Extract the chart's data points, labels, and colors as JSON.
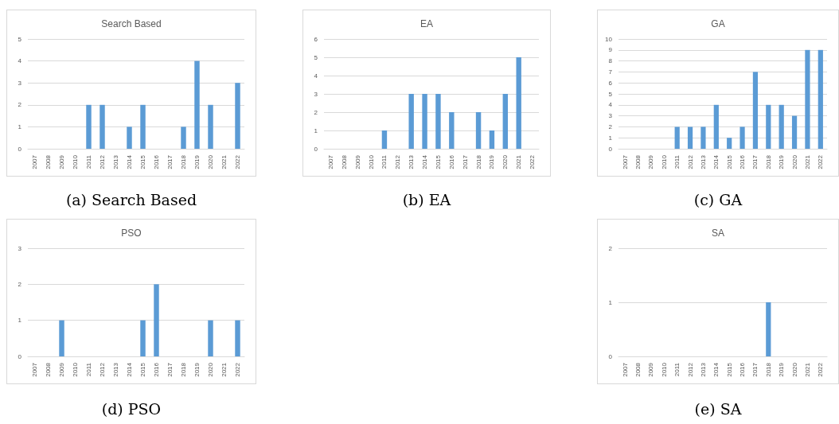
{
  "chart_data": [
    {
      "type": "bar",
      "title": "Search Based",
      "categories": [
        "2007",
        "2008",
        "2009",
        "2010",
        "2011",
        "2012",
        "2013",
        "2014",
        "2015",
        "2016",
        "2017",
        "2018",
        "2019",
        "2020",
        "2021",
        "2022"
      ],
      "values": [
        0,
        0,
        0,
        0,
        2,
        2,
        0,
        1,
        2,
        0,
        0,
        1,
        4,
        2,
        0,
        3
      ],
      "color": "#5b9bd5",
      "ylim": [
        0,
        5
      ],
      "yticks": [
        0,
        1,
        2,
        3,
        4,
        5
      ],
      "grid": "y",
      "annotations": [
        "(a) Search Based"
      ]
    },
    {
      "type": "bar",
      "title": "EA",
      "categories": [
        "2007",
        "2008",
        "2009",
        "2010",
        "2011",
        "2012",
        "2013",
        "2014",
        "2015",
        "2016",
        "2017",
        "2018",
        "2019",
        "2020",
        "2021",
        "2022"
      ],
      "values": [
        0,
        0,
        0,
        0,
        1,
        0,
        3,
        3,
        3,
        2,
        0,
        2,
        1,
        3,
        5,
        0
      ],
      "color": "#5b9bd5",
      "ylim": [
        0,
        6
      ],
      "yticks": [
        0,
        1,
        2,
        3,
        4,
        5,
        6
      ],
      "grid": "y",
      "annotations": [
        "(b) EA"
      ]
    },
    {
      "type": "bar",
      "title": "GA",
      "categories": [
        "2007",
        "2008",
        "2009",
        "2010",
        "2011",
        "2012",
        "2013",
        "2014",
        "2015",
        "2016",
        "2017",
        "2018",
        "2019",
        "2020",
        "2021",
        "2022"
      ],
      "values": [
        0,
        0,
        0,
        0,
        2,
        2,
        2,
        4,
        1,
        2,
        7,
        4,
        4,
        3,
        9,
        9
      ],
      "color": "#5b9bd5",
      "ylim": [
        0,
        10
      ],
      "yticks": [
        0,
        1,
        2,
        3,
        4,
        5,
        6,
        7,
        8,
        9,
        10
      ],
      "grid": "y",
      "annotations": [
        "(c) GA"
      ]
    },
    {
      "type": "bar",
      "title": "PSO",
      "categories": [
        "2007",
        "2008",
        "2009",
        "2010",
        "2011",
        "2012",
        "2013",
        "2014",
        "2015",
        "2016",
        "2017",
        "2018",
        "2019",
        "2020",
        "2021",
        "2022"
      ],
      "values": [
        0,
        0,
        1,
        0,
        0,
        0,
        0,
        0,
        1,
        2,
        0,
        0,
        0,
        1,
        0,
        1
      ],
      "color": "#5b9bd5",
      "ylim": [
        0,
        3
      ],
      "yticks": [
        0,
        1,
        2,
        3
      ],
      "grid": "y",
      "annotations": [
        "(d) PSO"
      ]
    },
    {
      "type": "bar",
      "title": "SA",
      "categories": [
        "2007",
        "2008",
        "2009",
        "2010",
        "2011",
        "2012",
        "2013",
        "2014",
        "2015",
        "2016",
        "2017",
        "2018",
        "2019",
        "2020",
        "2021",
        "2022"
      ],
      "values": [
        0,
        0,
        0,
        0,
        0,
        0,
        0,
        0,
        0,
        0,
        0,
        1,
        0,
        0,
        0,
        0
      ],
      "color": "#5b9bd5",
      "ylim": [
        0,
        2
      ],
      "yticks": [
        0,
        1,
        2
      ],
      "grid": "y",
      "annotations": [
        "(e) SA"
      ]
    }
  ]
}
